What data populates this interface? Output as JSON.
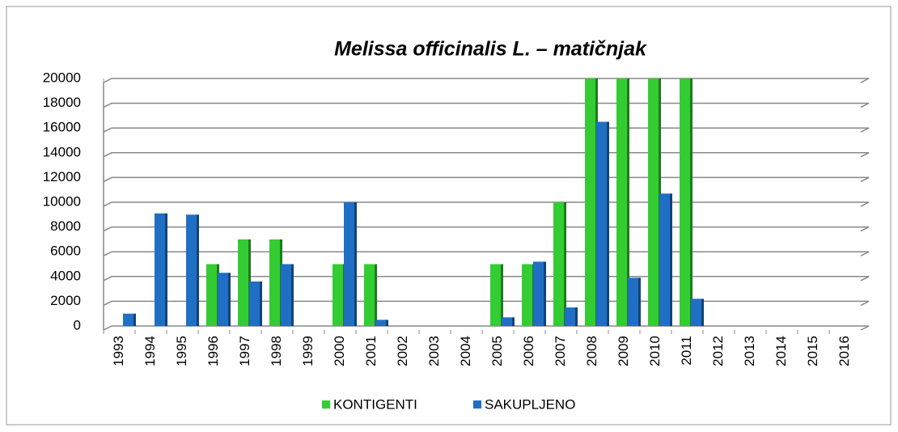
{
  "chart_data": {
    "type": "bar",
    "title": "Melissa officinalis L. – matičnjak",
    "categories": [
      "1993",
      "1994",
      "1995",
      "1996",
      "1997",
      "1998",
      "1999",
      "2000",
      "2001",
      "2002",
      "2003",
      "2004",
      "2005",
      "2006",
      "2007",
      "2008",
      "2009",
      "2010",
      "2011",
      "2012",
      "2013",
      "2014",
      "2015",
      "2016"
    ],
    "series": [
      {
        "name": "KONTIGENTI",
        "color": "#33cc33",
        "values": [
          null,
          null,
          null,
          5000,
          7000,
          7000,
          null,
          5000,
          5000,
          null,
          null,
          null,
          5000,
          5000,
          10000,
          20000,
          20000,
          20000,
          20000,
          null,
          null,
          null,
          null,
          null
        ]
      },
      {
        "name": "SAKUPLJENO",
        "color": "#1f6fc4",
        "values": [
          1000,
          9100,
          9000,
          4300,
          3600,
          5000,
          null,
          10000,
          500,
          null,
          null,
          null,
          700,
          5200,
          1500,
          16500,
          3900,
          10700,
          2200,
          null,
          null,
          null,
          null,
          null
        ]
      }
    ],
    "ylim": [
      0,
      20000
    ],
    "yticks": [
      0,
      2000,
      4000,
      6000,
      8000,
      10000,
      12000,
      14000,
      16000,
      18000,
      20000
    ],
    "grid": true,
    "legend": "bottom"
  }
}
